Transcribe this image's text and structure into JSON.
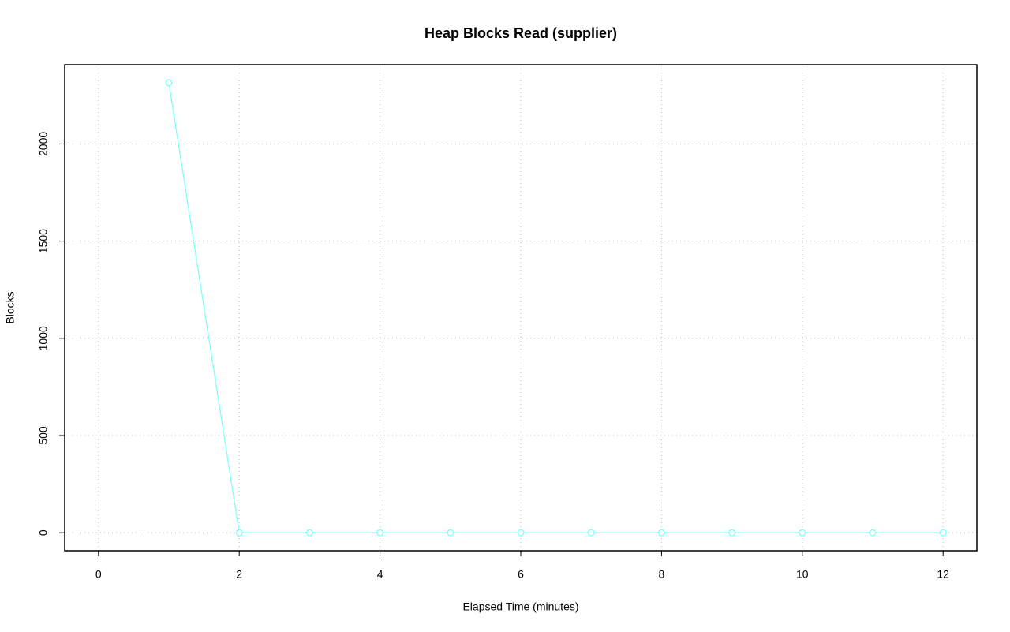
{
  "chart_data": {
    "type": "line",
    "title": "Heap Blocks Read (supplier)",
    "x_label": "Elapsed Time (minutes)",
    "y_label": "Blocks",
    "x": [
      1,
      2,
      3,
      4,
      5,
      6,
      7,
      8,
      9,
      10,
      11,
      12
    ],
    "series": [
      {
        "name": "supplier",
        "color": "#7fffff",
        "values": [
          2315,
          0,
          0,
          0,
          0,
          0,
          0,
          0,
          0,
          0,
          0,
          0
        ]
      }
    ],
    "xlim": [
      -0.48,
      12.48
    ],
    "xticks": [
      0,
      2,
      4,
      6,
      8,
      10,
      12
    ],
    "ylim": [
      -92.6,
      2407.6
    ],
    "yticks": [
      0,
      500,
      1000,
      1500,
      2000
    ],
    "grid": true
  }
}
